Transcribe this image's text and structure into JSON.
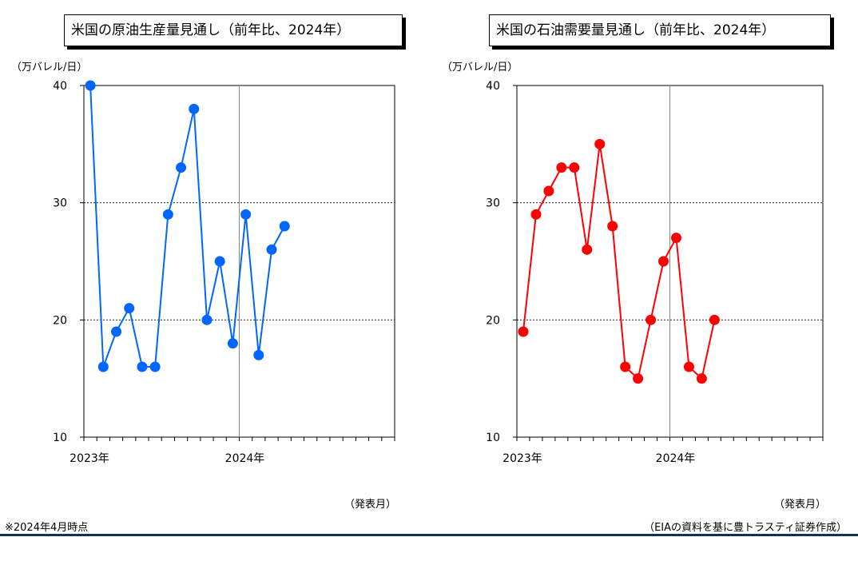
{
  "chart_data": [
    {
      "type": "line",
      "title": "米国の原油生産量見通し（前年比、2024年）",
      "ylabel": "（万バレル/日）",
      "xlabel": "（発表月）",
      "ylim": [
        10,
        40
      ],
      "yticks": [
        "10",
        "20",
        "30",
        "40"
      ],
      "xtick_labels": [
        "2023年",
        "2024年"
      ],
      "grid": "horizontal dashed at 20 and 30; vertical line at 2024年",
      "color": "#0066ff",
      "x": [
        "2023-01",
        "2023-02",
        "2023-03",
        "2023-04",
        "2023-05",
        "2023-06",
        "2023-07",
        "2023-08",
        "2023-09",
        "2023-10",
        "2023-11",
        "2023-12",
        "2024-01",
        "2024-02",
        "2024-03",
        "2024-04"
      ],
      "series": [
        {
          "values": [
            40,
            16,
            19,
            21,
            16,
            16,
            29,
            33,
            38,
            20,
            25,
            18,
            29,
            17,
            26,
            28
          ]
        }
      ]
    },
    {
      "type": "line",
      "title": "米国の石油需要量見通し（前年比、2024年）",
      "ylabel": "（万バレル/日）",
      "xlabel": "（発表月）",
      "ylim": [
        10,
        40
      ],
      "yticks": [
        "10",
        "20",
        "30",
        "40"
      ],
      "xtick_labels": [
        "2023年",
        "2024年"
      ],
      "grid": "horizontal dashed at 20 and 30; vertical line at 2024年",
      "color": "#ff0000",
      "x": [
        "2023-01",
        "2023-02",
        "2023-03",
        "2023-04",
        "2023-05",
        "2023-06",
        "2023-07",
        "2023-08",
        "2023-09",
        "2023-10",
        "2023-11",
        "2023-12",
        "2024-01",
        "2024-02",
        "2024-03",
        "2024-04"
      ],
      "series": [
        {
          "values": [
            19,
            29,
            31,
            33,
            33,
            26,
            35,
            28,
            16,
            15,
            20,
            25,
            27,
            16,
            15,
            20
          ]
        }
      ]
    }
  ],
  "notes": {
    "as_of": "※2024年4月時点",
    "source": "（EIAの資料を基に豊トラスティ証券作成）"
  }
}
